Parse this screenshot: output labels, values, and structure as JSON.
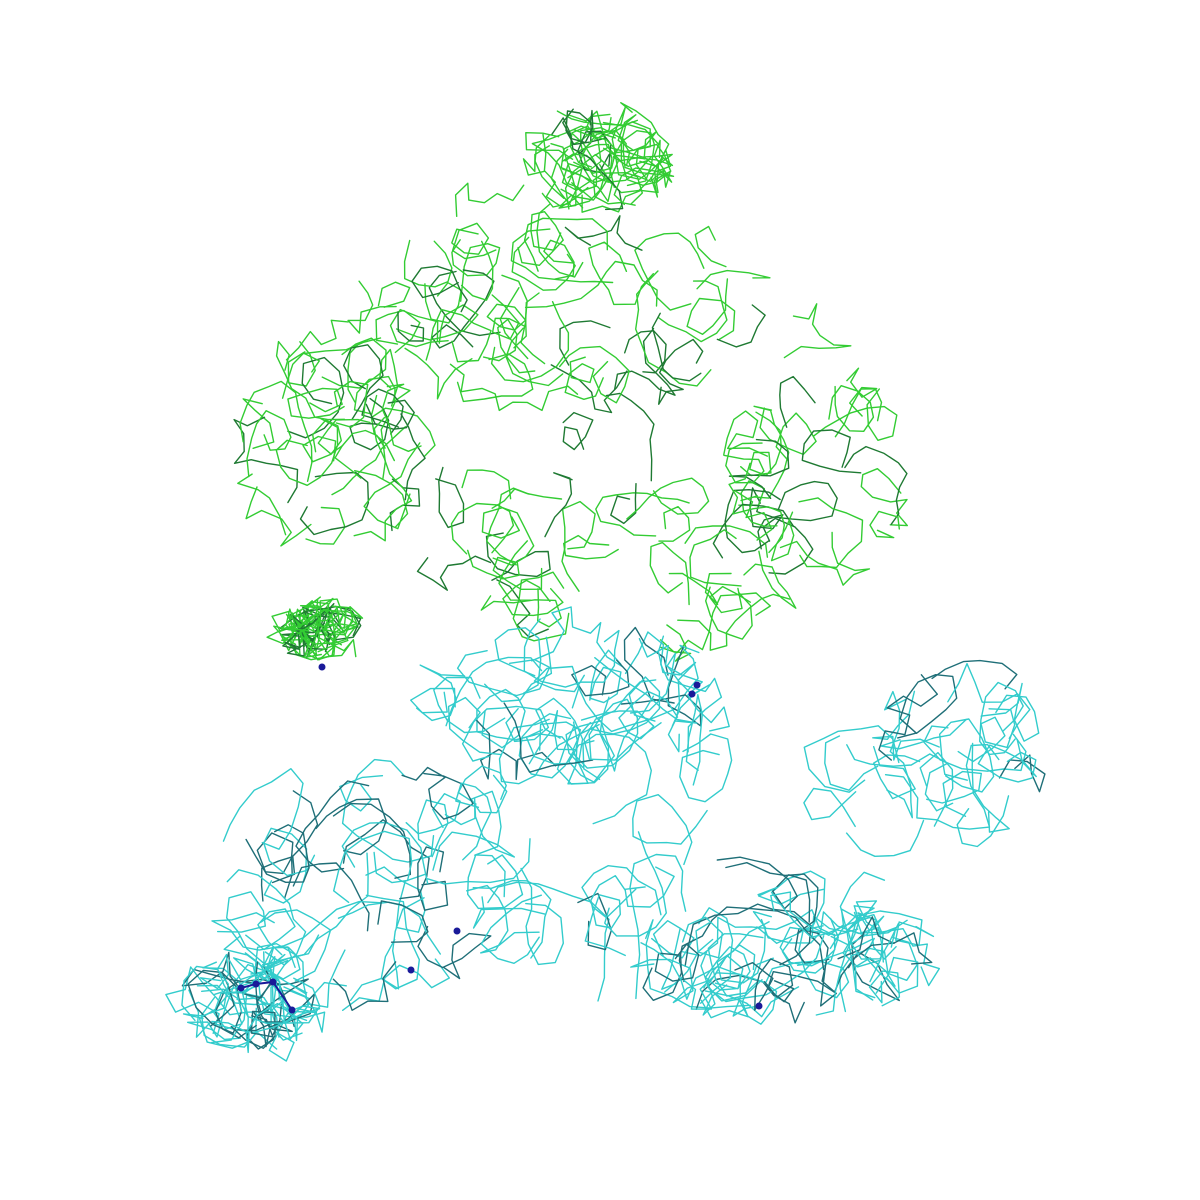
{
  "scene": {
    "background": "#ffffff",
    "chains": [
      {
        "name": "green-chain",
        "color": "#33cc33",
        "shade": "#1f7a33"
      },
      {
        "name": "cyan-chain",
        "color": "#33cccc",
        "shade": "#1f6f78"
      }
    ],
    "ligand_color": "#1a1a99"
  }
}
